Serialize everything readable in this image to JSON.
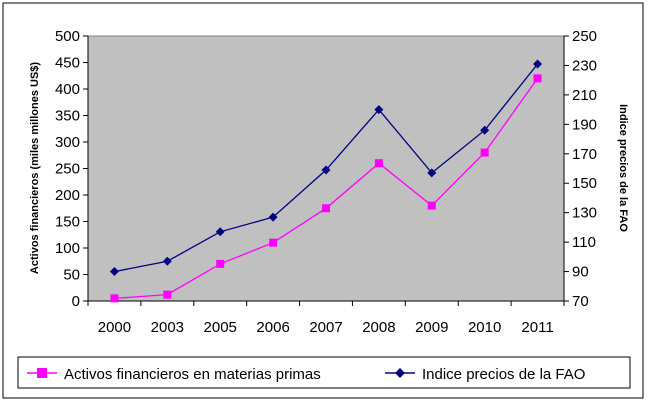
{
  "chart_data": {
    "type": "line",
    "title": "",
    "categories": [
      "2000",
      "2003",
      "2005",
      "2006",
      "2007",
      "2008",
      "2009",
      "2010",
      "2011"
    ],
    "series": [
      {
        "name": "Activos financieros en materias primas",
        "axis": "left",
        "color": "#ff00ff",
        "marker": "square",
        "values": [
          5,
          12,
          70,
          110,
          175,
          260,
          180,
          280,
          420
        ]
      },
      {
        "name": "Indice precios de la FAO",
        "axis": "right",
        "color": "#000080",
        "marker": "diamond",
        "values": [
          90,
          97,
          117,
          127,
          159,
          200,
          157,
          186,
          231
        ]
      }
    ],
    "y_left": {
      "label": "Activos financieros (miles millones US$)",
      "range": [
        0,
        500
      ],
      "ticks": [
        "0",
        "50",
        "100",
        "150",
        "200",
        "250",
        "300",
        "350",
        "400",
        "450",
        "500"
      ]
    },
    "y_right": {
      "label": "Indice precios de la FAO",
      "range": [
        70,
        250
      ],
      "ticks": [
        "70",
        "90",
        "110",
        "130",
        "150",
        "170",
        "190",
        "210",
        "230",
        "250"
      ]
    },
    "gridlines": false,
    "plot_background": "#c0c0c0",
    "legend_position": "bottom"
  }
}
